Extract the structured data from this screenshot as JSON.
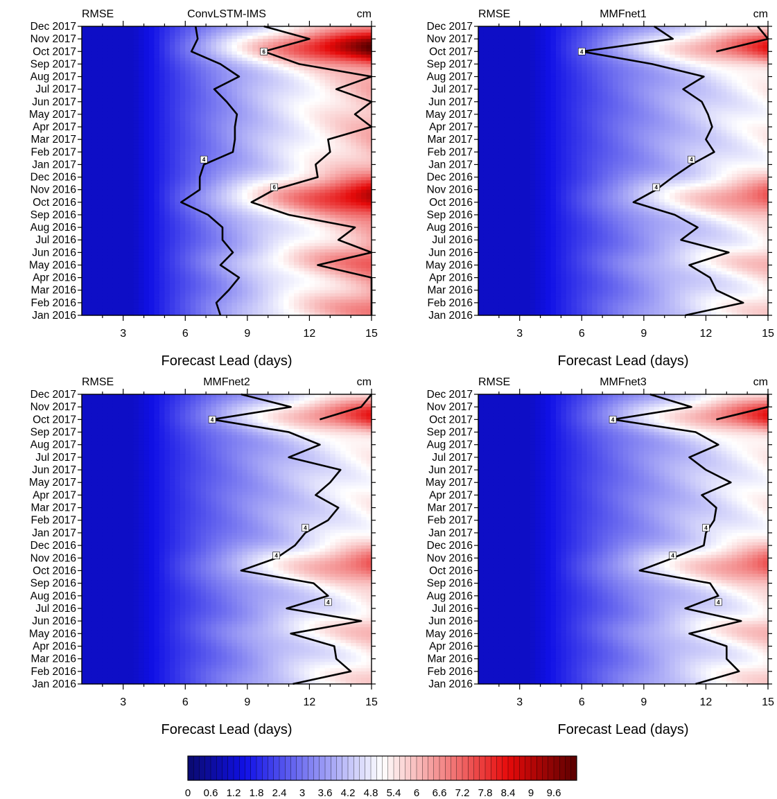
{
  "colorbar": {
    "min": 0,
    "max": 10.2,
    "step": 0.15,
    "tick_labels": [
      "0",
      "0.6",
      "1.2",
      "1.8",
      "2.4",
      "3",
      "3.6",
      "4.2",
      "4.8",
      "5.4",
      "6",
      "6.6",
      "7.2",
      "7.8",
      "8.4",
      "9",
      "9.6"
    ],
    "colors": {
      "dark_blue": "#0a0a6e",
      "blue": "#1010e6",
      "white": "#ffffff",
      "red": "#e60a0a",
      "dark_red": "#5a0000"
    }
  },
  "chart_data": [
    {
      "type": "heatmap",
      "left_label": "RMSE",
      "title": "ConvLSTM-IMS",
      "units": "cm",
      "xlabel": "Forecast Lead (days)",
      "xlim": [
        1,
        15
      ],
      "xticks": [
        "3",
        "6",
        "9",
        "12",
        "15"
      ],
      "yticks": [
        "Jan 2016",
        "Feb 2016",
        "Mar 2016",
        "Apr 2016",
        "May 2016",
        "Jun 2016",
        "Jul 2016",
        "Aug 2016",
        "Sep 2016",
        "Oct 2016",
        "Nov 2016",
        "Dec 2016",
        "Jan 2017",
        "Feb 2017",
        "Mar 2017",
        "Apr 2017",
        "May 2017",
        "Jun 2017",
        "Jul 2017",
        "Aug 2017",
        "Sep 2017",
        "Oct 2017",
        "Nov 2017",
        "Dec 2017"
      ],
      "contour_4_lead_days": [
        7.7,
        7.5,
        8.1,
        8.6,
        7.7,
        8.3,
        7.8,
        7.8,
        7.1,
        5.8,
        6.7,
        6.7,
        6.9,
        8.3,
        8.4,
        8.4,
        8.5,
        8.0,
        7.4,
        8.6,
        7.7,
        6.3,
        6.6,
        6.5
      ],
      "contour_6_lead_days": [
        15.5,
        15.5,
        15.5,
        15.5,
        12.4,
        15.5,
        13.4,
        14.2,
        11.0,
        9.2,
        10.3,
        12.4,
        12.3,
        13.0,
        12.9,
        15.0,
        14.2,
        15.5,
        13.3,
        15.0,
        11.5,
        9.8,
        12.0,
        9.8
      ],
      "contour_labels": [
        "4",
        "6",
        "6"
      ],
      "high_error_months": [
        "Oct 2016",
        "Nov 2016",
        "Oct 2017",
        "May 2016"
      ]
    },
    {
      "type": "heatmap",
      "left_label": "RMSE",
      "title": "MMFnet1",
      "units": "cm",
      "xlabel": "Forecast Lead (days)",
      "xlim": [
        1,
        15
      ],
      "xticks": [
        "3",
        "6",
        "9",
        "12",
        "15"
      ],
      "yticks": [
        "Jan 2016",
        "Feb 2016",
        "Mar 2016",
        "Apr 2016",
        "May 2016",
        "Jun 2016",
        "Jul 2016",
        "Aug 2016",
        "Sep 2016",
        "Oct 2016",
        "Nov 2016",
        "Dec 2016",
        "Jan 2017",
        "Feb 2017",
        "Mar 2017",
        "Apr 2017",
        "May 2017",
        "Jun 2017",
        "Jul 2017",
        "Aug 2017",
        "Sep 2017",
        "Oct 2017",
        "Nov 2017",
        "Dec 2017"
      ],
      "contour_4_lead_days": [
        11.0,
        13.8,
        12.5,
        12.2,
        11.2,
        13.1,
        10.8,
        11.6,
        10.5,
        8.5,
        9.6,
        10.4,
        11.3,
        12.4,
        12.0,
        12.3,
        12.1,
        11.8,
        10.9,
        11.9,
        9.4,
        6.0,
        10.4,
        9.5
      ],
      "contour_6_lead_days": [
        null,
        null,
        null,
        null,
        null,
        null,
        null,
        null,
        null,
        null,
        null,
        null,
        null,
        null,
        null,
        null,
        null,
        null,
        null,
        null,
        null,
        12.5,
        15.0,
        14.5
      ],
      "contour_labels": [
        "4",
        "4",
        "4"
      ],
      "high_error_months": [
        "Oct 2017",
        "Nov 2017",
        "Oct 2016"
      ]
    },
    {
      "type": "heatmap",
      "left_label": "RMSE",
      "title": "MMFnet2",
      "units": "cm",
      "xlabel": "Forecast Lead (days)",
      "xlim": [
        1,
        15
      ],
      "xticks": [
        "3",
        "6",
        "9",
        "12",
        "15"
      ],
      "yticks": [
        "Jan 2016",
        "Feb 2016",
        "Mar 2016",
        "Apr 2016",
        "May 2016",
        "Jun 2016",
        "Jul 2016",
        "Aug 2016",
        "Sep 2016",
        "Oct 2016",
        "Nov 2016",
        "Dec 2016",
        "Jan 2017",
        "Feb 2017",
        "Mar 2017",
        "Apr 2017",
        "May 2017",
        "Jun 2017",
        "Jul 2017",
        "Aug 2017",
        "Sep 2017",
        "Oct 2017",
        "Nov 2017",
        "Dec 2017"
      ],
      "contour_4_lead_days": [
        11.2,
        14.0,
        13.3,
        13.2,
        11.1,
        14.5,
        10.9,
        12.9,
        12.2,
        8.7,
        10.4,
        11.3,
        11.8,
        12.9,
        13.4,
        12.3,
        13.0,
        13.5,
        11.0,
        12.5,
        11.0,
        7.3,
        11.1,
        8.7
      ],
      "contour_6_lead_days": [
        null,
        null,
        null,
        null,
        null,
        null,
        null,
        null,
        null,
        null,
        null,
        null,
        null,
        null,
        null,
        null,
        null,
        null,
        null,
        null,
        null,
        12.5,
        14.5,
        15.0
      ],
      "contour_labels": [
        "4",
        "4",
        "4",
        "4"
      ],
      "high_error_months": [
        "Oct 2017",
        "Nov 2017",
        "Oct 2016"
      ]
    },
    {
      "type": "heatmap",
      "left_label": "RMSE",
      "title": "MMFnet3",
      "units": "cm",
      "xlabel": "Forecast Lead (days)",
      "xlim": [
        1,
        15
      ],
      "xticks": [
        "3",
        "6",
        "9",
        "12",
        "15"
      ],
      "yticks": [
        "Jan 2016",
        "Feb 2016",
        "Mar 2016",
        "Apr 2016",
        "May 2016",
        "Jun 2016",
        "Jul 2016",
        "Aug 2016",
        "Sep 2016",
        "Oct 2016",
        "Nov 2016",
        "Dec 2016",
        "Jan 2017",
        "Feb 2017",
        "Mar 2017",
        "Apr 2017",
        "May 2017",
        "Jun 2017",
        "Jul 2017",
        "Aug 2017",
        "Sep 2017",
        "Oct 2017",
        "Nov 2017",
        "Dec 2017"
      ],
      "contour_4_lead_days": [
        11.5,
        13.6,
        13.0,
        13.0,
        11.2,
        13.7,
        11.0,
        12.6,
        12.2,
        8.8,
        10.4,
        11.9,
        12.0,
        12.4,
        12.5,
        11.8,
        13.2,
        12.0,
        11.2,
        12.6,
        11.5,
        7.5,
        11.3,
        9.3
      ],
      "contour_6_lead_days": [
        null,
        null,
        null,
        null,
        null,
        null,
        null,
        null,
        null,
        null,
        null,
        null,
        null,
        null,
        null,
        null,
        null,
        null,
        null,
        null,
        null,
        12.5,
        15.0,
        15.0
      ],
      "contour_labels": [
        "4",
        "4",
        "4",
        "4"
      ],
      "high_error_months": [
        "Oct 2017",
        "Nov 2017",
        "Oct 2016"
      ]
    }
  ]
}
